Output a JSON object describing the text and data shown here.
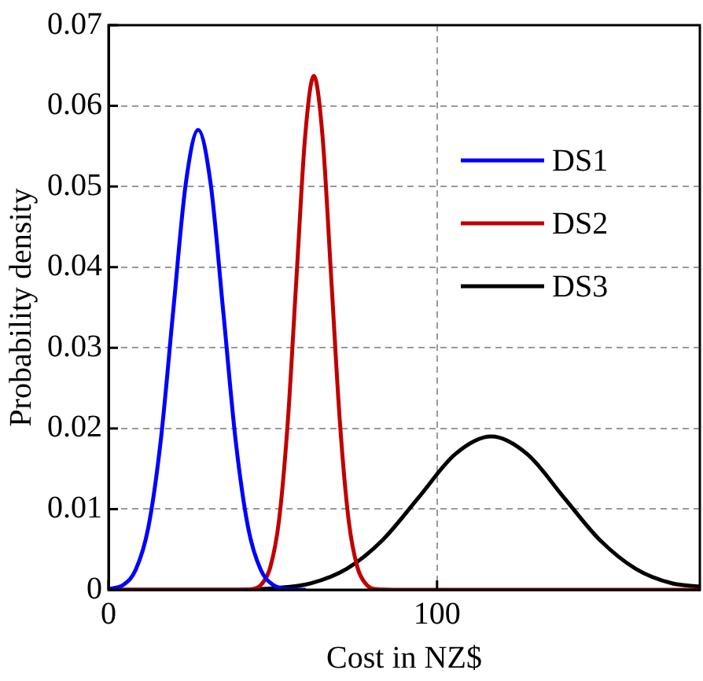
{
  "chart_data": {
    "type": "line",
    "xlabel": "Cost in NZ$",
    "ylabel": "Probability density",
    "xlim": [
      0,
      180
    ],
    "xticks": [
      0,
      100
    ],
    "ylim": [
      0,
      0.07
    ],
    "yticks": [
      0,
      0.01,
      0.02,
      0.03,
      0.04,
      0.05,
      0.06,
      0.07
    ],
    "grid": true,
    "legend": "top right",
    "marker": "none",
    "line_style": "solid",
    "series": [
      {
        "name": "DS1",
        "color": "#0000ff",
        "x": [
          0,
          4.5,
          8.3,
          12.1,
          15.9,
          19.7,
          23.5,
          27.3,
          31.1,
          34.9,
          38.7,
          42.5,
          46.3,
          50.1,
          53.9,
          60
        ],
        "values": [
          0.0001,
          0.0006,
          0.0025,
          0.0077,
          0.0185,
          0.0346,
          0.0503,
          0.057,
          0.0503,
          0.0346,
          0.0185,
          0.0077,
          0.0025,
          0.0006,
          0.0001,
          0
        ]
      },
      {
        "name": "DS2",
        "color": "#c00000",
        "x": [
          0,
          40,
          44,
          46.6,
          49.25,
          51.9,
          54.55,
          57.2,
          59.85,
          62.5,
          65.15,
          67.8,
          70.45,
          73.1,
          75.75,
          78.4,
          81,
          90,
          180
        ],
        "values": [
          0,
          0,
          0.0001,
          0.0007,
          0.0028,
          0.0086,
          0.0207,
          0.0386,
          0.0562,
          0.0637,
          0.0562,
          0.0386,
          0.0207,
          0.0086,
          0.0028,
          0.0007,
          0.0001,
          0,
          0
        ]
      },
      {
        "name": "DS3",
        "color": "#000000",
        "x": [
          0,
          30,
          39.5,
          50.5,
          61.5,
          72.5,
          83.5,
          94.5,
          105.5,
          116.5,
          127.5,
          138.5,
          149.5,
          160.5,
          171.5,
          180
        ],
        "values": [
          0,
          0,
          0,
          0.0002,
          0.0008,
          0.0026,
          0.0062,
          0.0115,
          0.0168,
          0.019,
          0.0168,
          0.0115,
          0.0062,
          0.0026,
          0.0008,
          0.0004
        ]
      }
    ]
  }
}
